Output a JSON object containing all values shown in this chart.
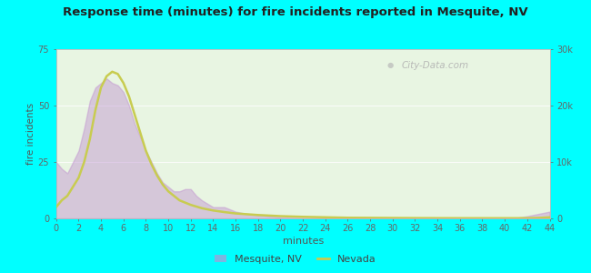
{
  "title": "Response time (minutes) for fire incidents reported in Mesquite, NV",
  "xlabel": "minutes",
  "ylabel": "fire incidents",
  "bg_color": "#00FFFF",
  "plot_bg_color": "#e8f5e2",
  "x_ticks": [
    0,
    2,
    4,
    6,
    8,
    10,
    12,
    14,
    16,
    18,
    20,
    22,
    24,
    26,
    28,
    30,
    32,
    34,
    36,
    38,
    40,
    42,
    44
  ],
  "ylim_left": [
    0,
    75
  ],
  "ylim_right": [
    0,
    30000
  ],
  "yticks_left": [
    0,
    25,
    50,
    75
  ],
  "yticks_right": [
    0,
    10000,
    20000,
    30000
  ],
  "ytick_labels_right": [
    "0",
    "10k",
    "20k",
    "30k"
  ],
  "mesquite_color": "#c090d0",
  "nevada_color": "#c8cc50",
  "watermark": "City-Data.com",
  "mesquite_x": [
    0.0,
    0.5,
    1.0,
    1.5,
    2.0,
    2.5,
    3.0,
    3.5,
    4.0,
    4.5,
    5.0,
    5.5,
    6.0,
    6.5,
    7.0,
    7.5,
    8.0,
    8.5,
    9.0,
    9.5,
    10.0,
    10.5,
    11.0,
    11.5,
    12.0,
    12.5,
    13.0,
    14.0,
    15.0,
    16.0,
    17.0,
    18.0,
    19.0,
    20.0,
    21.0,
    22.0,
    23.0,
    24.0,
    25.0,
    26.0,
    27.0,
    28.0,
    29.0,
    30.0,
    32.0,
    34.0,
    36.0,
    38.0,
    40.0,
    41.0,
    42.0,
    43.0,
    44.0
  ],
  "mesquite_y": [
    25,
    22,
    20,
    25,
    30,
    40,
    52,
    58,
    60,
    62,
    60,
    59,
    56,
    50,
    42,
    36,
    30,
    25,
    20,
    16,
    14,
    12,
    12,
    13,
    13,
    10,
    8,
    5,
    5,
    3,
    2,
    1.5,
    1,
    0.5,
    0.3,
    0.2,
    0.2,
    0.2,
    0.1,
    0.1,
    0.1,
    0.1,
    0.1,
    0.1,
    0.1,
    0.1,
    0.1,
    0.1,
    0.1,
    0.2,
    1,
    2,
    3
  ],
  "nevada_x": [
    0.0,
    0.5,
    1.0,
    1.5,
    2.0,
    2.5,
    3.0,
    3.5,
    4.0,
    4.5,
    5.0,
    5.5,
    6.0,
    6.5,
    7.0,
    7.5,
    8.0,
    8.5,
    9.0,
    9.5,
    10.0,
    11.0,
    12.0,
    13.0,
    14.0,
    15.0,
    16.0,
    18.0,
    20.0,
    22.0,
    24.0,
    26.0,
    28.0,
    30.0,
    32.0,
    34.0,
    36.0,
    38.0,
    40.0,
    42.0,
    43.0,
    44.0
  ],
  "nevada_y_left": [
    5,
    8,
    10,
    14,
    18,
    25,
    35,
    48,
    58,
    63,
    65,
    64,
    60,
    54,
    46,
    38,
    30,
    24,
    19,
    15,
    12,
    8,
    6,
    4.5,
    3.5,
    2.8,
    2.2,
    1.5,
    1.0,
    0.7,
    0.5,
    0.3,
    0.25,
    0.2,
    0.15,
    0.12,
    0.1,
    0.1,
    0.1,
    0.1,
    0.2,
    0.5
  ]
}
